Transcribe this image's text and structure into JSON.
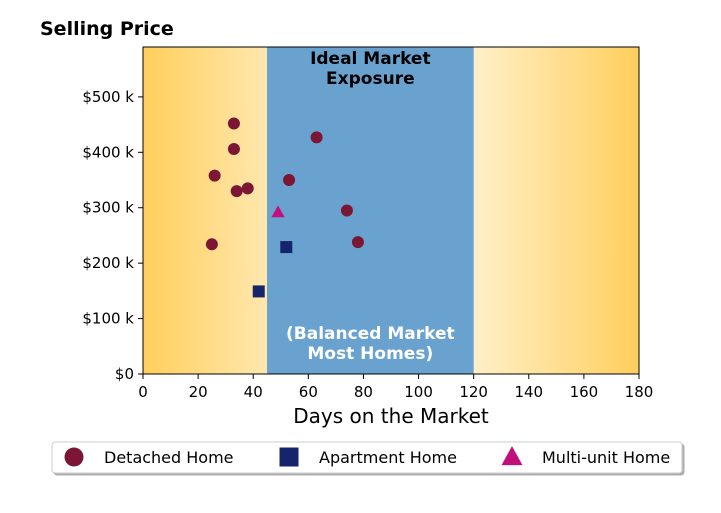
{
  "chart_data": {
    "type": "scatter",
    "title": "Selling Price",
    "xlabel": "Days on the Market",
    "ylabel": "",
    "xlim": [
      0,
      180
    ],
    "ylim": [
      0,
      590000
    ],
    "x_ticks": [
      0,
      20,
      40,
      60,
      80,
      100,
      120,
      140,
      160,
      180
    ],
    "y_ticks": [
      0,
      100000,
      200000,
      300000,
      400000,
      500000
    ],
    "x_tick_labels": [
      "0",
      "20",
      "40",
      "60",
      "80",
      "100",
      "120",
      "140",
      "160",
      "180"
    ],
    "y_tick_labels": [
      "$0",
      "$100 k",
      "$200 k",
      "$300 k",
      "$400 k",
      "$500 k"
    ],
    "grid": false,
    "legend_position": "bottom",
    "bands": [
      {
        "x_start": 45,
        "x_end": 120,
        "color": "#6aa2cf",
        "label_top": [
          "Ideal Market",
          "Exposure"
        ],
        "label_bottom": [
          "(Balanced Market",
          "Most Homes)"
        ]
      }
    ],
    "background_gradient": {
      "edge_color": "#ffcf5c",
      "center_color": "#ffffff"
    },
    "series": [
      {
        "name": "Detached Home",
        "marker": "circle",
        "color": "#7b1734",
        "points": [
          {
            "x": 33,
            "y": 452000
          },
          {
            "x": 33,
            "y": 406000
          },
          {
            "x": 26,
            "y": 358000
          },
          {
            "x": 38,
            "y": 335000
          },
          {
            "x": 34,
            "y": 330000
          },
          {
            "x": 25,
            "y": 234000
          },
          {
            "x": 63,
            "y": 427000
          },
          {
            "x": 53,
            "y": 350000
          },
          {
            "x": 74,
            "y": 295000
          },
          {
            "x": 78,
            "y": 238000
          }
        ]
      },
      {
        "name": "Apartment Home",
        "marker": "square",
        "color": "#15246b",
        "points": [
          {
            "x": 52,
            "y": 229000
          },
          {
            "x": 42,
            "y": 149000
          }
        ]
      },
      {
        "name": "Multi-unit Home",
        "marker": "triangle",
        "color": "#c20f7c",
        "points": [
          {
            "x": 49,
            "y": 292000
          }
        ]
      }
    ]
  }
}
